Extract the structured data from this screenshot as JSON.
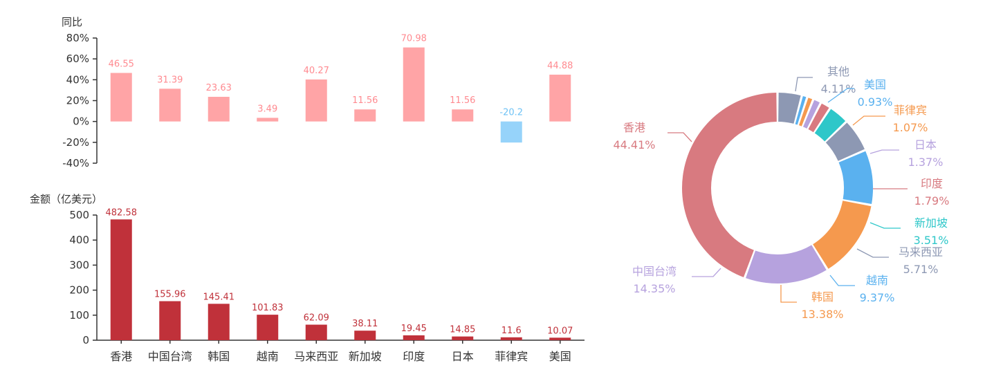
{
  "colors": {
    "pos": "#ffa4a6",
    "neg": "#96d3fa",
    "pos_label": "#ff8a90",
    "neg_label": "#6ec2f5",
    "amount": "#c0313a",
    "axis": "#333333"
  },
  "chart_data": [
    {
      "type": "bar",
      "ylabel": "同比",
      "categories": [
        "香港",
        "中国台湾",
        "韩国",
        "越南",
        "马来西亚",
        "新加坡",
        "印度",
        "日本",
        "菲律宾",
        "美国"
      ],
      "values": [
        46.55,
        31.39,
        23.63,
        3.49,
        40.27,
        11.56,
        70.98,
        11.56,
        -20.2,
        44.88
      ],
      "ylim": [
        -40,
        80
      ],
      "yticks": [
        "-40%",
        "-20%",
        "0%",
        "20%",
        "40%",
        "60%",
        "80%"
      ],
      "ytick_values": [
        -40,
        -20,
        0,
        20,
        40,
        60,
        80
      ]
    },
    {
      "type": "bar",
      "ylabel": "金额（亿美元）",
      "categories": [
        "香港",
        "中国台湾",
        "韩国",
        "越南",
        "马来西亚",
        "新加坡",
        "印度",
        "日本",
        "菲律宾",
        "美国"
      ],
      "values": [
        482.58,
        155.96,
        145.41,
        101.83,
        62.09,
        38.11,
        19.45,
        14.85,
        11.6,
        10.07
      ],
      "ylim": [
        0,
        500
      ],
      "yticks": [
        "0",
        "100",
        "200",
        "300",
        "400",
        "500"
      ],
      "ytick_values": [
        0,
        100,
        200,
        300,
        400,
        500
      ]
    },
    {
      "type": "pie",
      "donut": true,
      "slices": [
        {
          "name": "其他",
          "pct": "4.11%",
          "value": 4.11,
          "color": "#8d98b3"
        },
        {
          "name": "美国",
          "pct": "0.93%",
          "value": 0.93,
          "color": "#5ab1ef"
        },
        {
          "name": "菲律宾",
          "pct": "1.07%",
          "value": 1.07,
          "color": "#f5994e"
        },
        {
          "name": "日本",
          "pct": "1.37%",
          "value": 1.37,
          "color": "#b6a2de"
        },
        {
          "name": "印度",
          "pct": "1.79%",
          "value": 1.79,
          "color": "#d87a80"
        },
        {
          "name": "新加坡",
          "pct": "3.51%",
          "value": 3.51,
          "color": "#2ec7c9"
        },
        {
          "name": "马来西亚",
          "pct": "5.71%",
          "value": 5.71,
          "color": "#8d98b3"
        },
        {
          "name": "越南",
          "pct": "9.37%",
          "value": 9.37,
          "color": "#5ab1ef"
        },
        {
          "name": "韩国",
          "pct": "13.38%",
          "value": 13.38,
          "color": "#f5994e"
        },
        {
          "name": "中国台湾",
          "pct": "14.35%",
          "value": 14.35,
          "color": "#b6a2de"
        },
        {
          "name": "香港",
          "pct": "44.41%",
          "value": 44.41,
          "color": "#d87a80"
        }
      ]
    }
  ]
}
